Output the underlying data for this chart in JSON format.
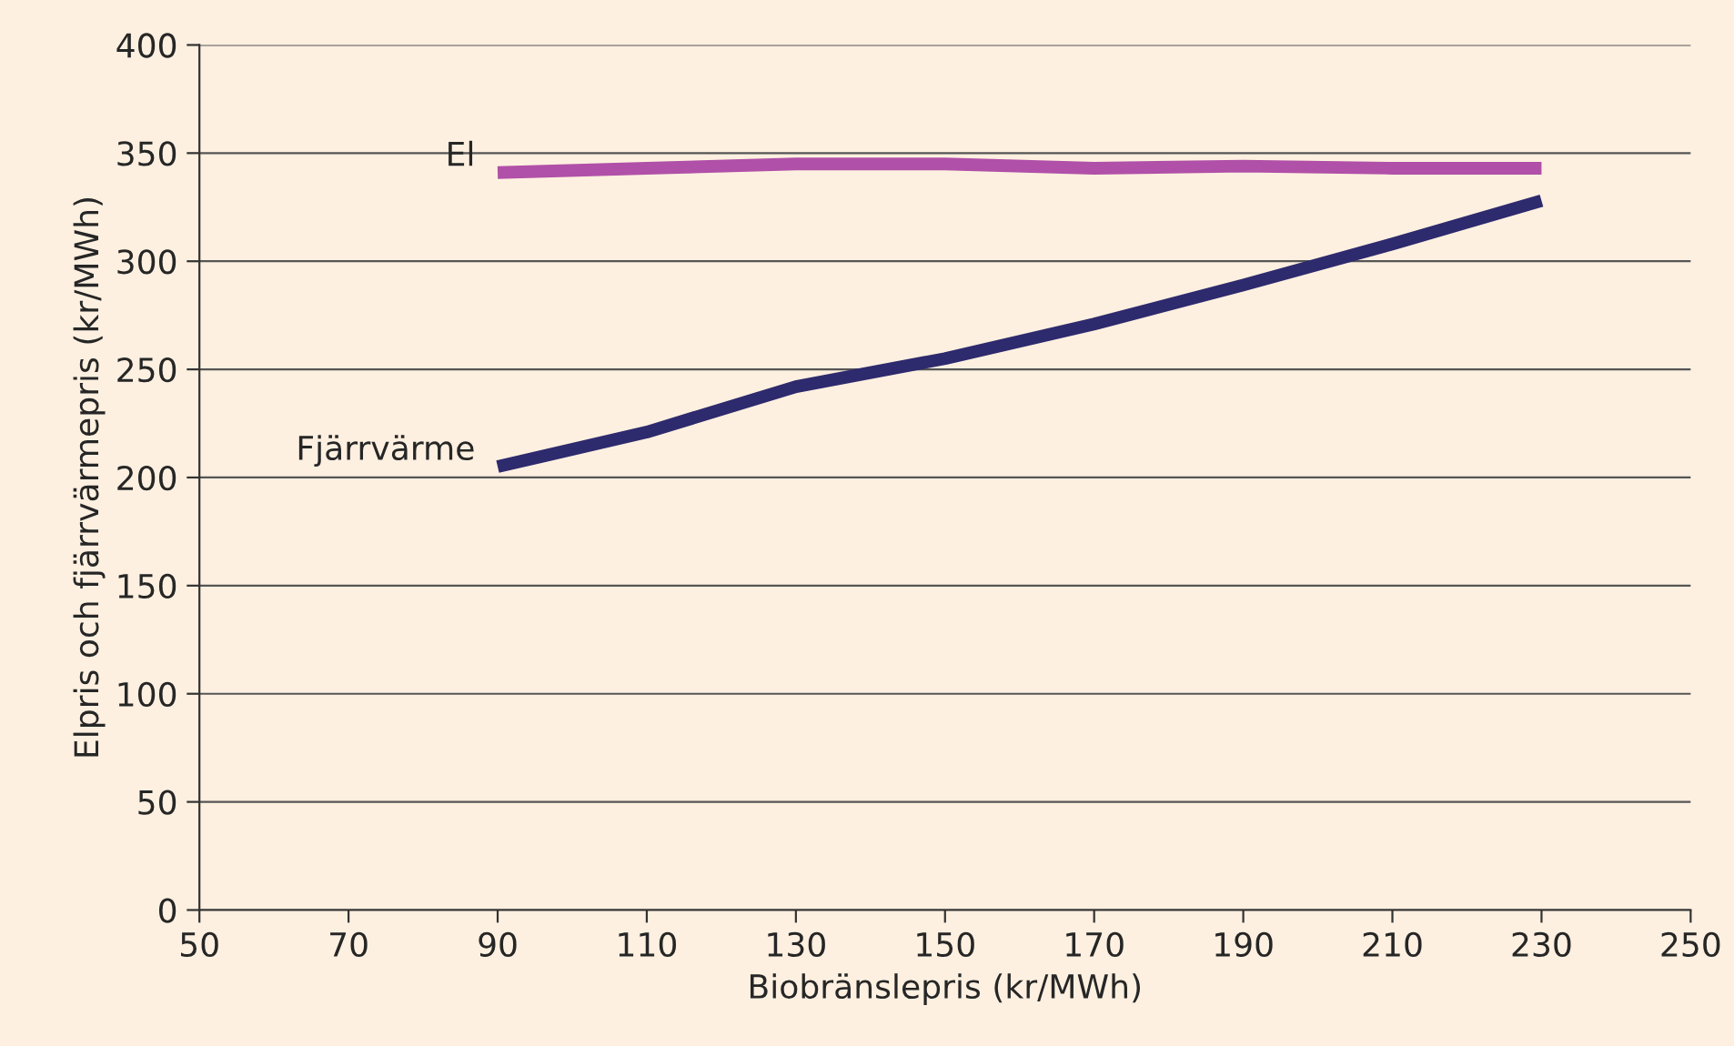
{
  "chart_data": {
    "type": "line",
    "xlabel": "Biobränslepris (kr/MWh)",
    "ylabel": "Elpris och fjärrvärmepris (kr/MWh)",
    "x": [
      90,
      110,
      130,
      150,
      170,
      190,
      210,
      230
    ],
    "series": [
      {
        "name": "El",
        "color": "#b050a8",
        "values": [
          341,
          343,
          345,
          345,
          343,
          344,
          343,
          343
        ]
      },
      {
        "name": "Fjärrvärme",
        "color": "#2e2a6e",
        "values": [
          205,
          221,
          242,
          255,
          271,
          289,
          308,
          328
        ]
      }
    ],
    "xlim": [
      50,
      250
    ],
    "xticks": [
      50,
      70,
      90,
      110,
      130,
      150,
      170,
      190,
      210,
      230,
      250
    ],
    "ylim": [
      0,
      400
    ],
    "yticks": [
      0,
      50,
      100,
      150,
      200,
      250,
      300,
      350,
      400
    ],
    "grid": "y",
    "legend": false,
    "marker": "none",
    "line_style": "solid"
  }
}
